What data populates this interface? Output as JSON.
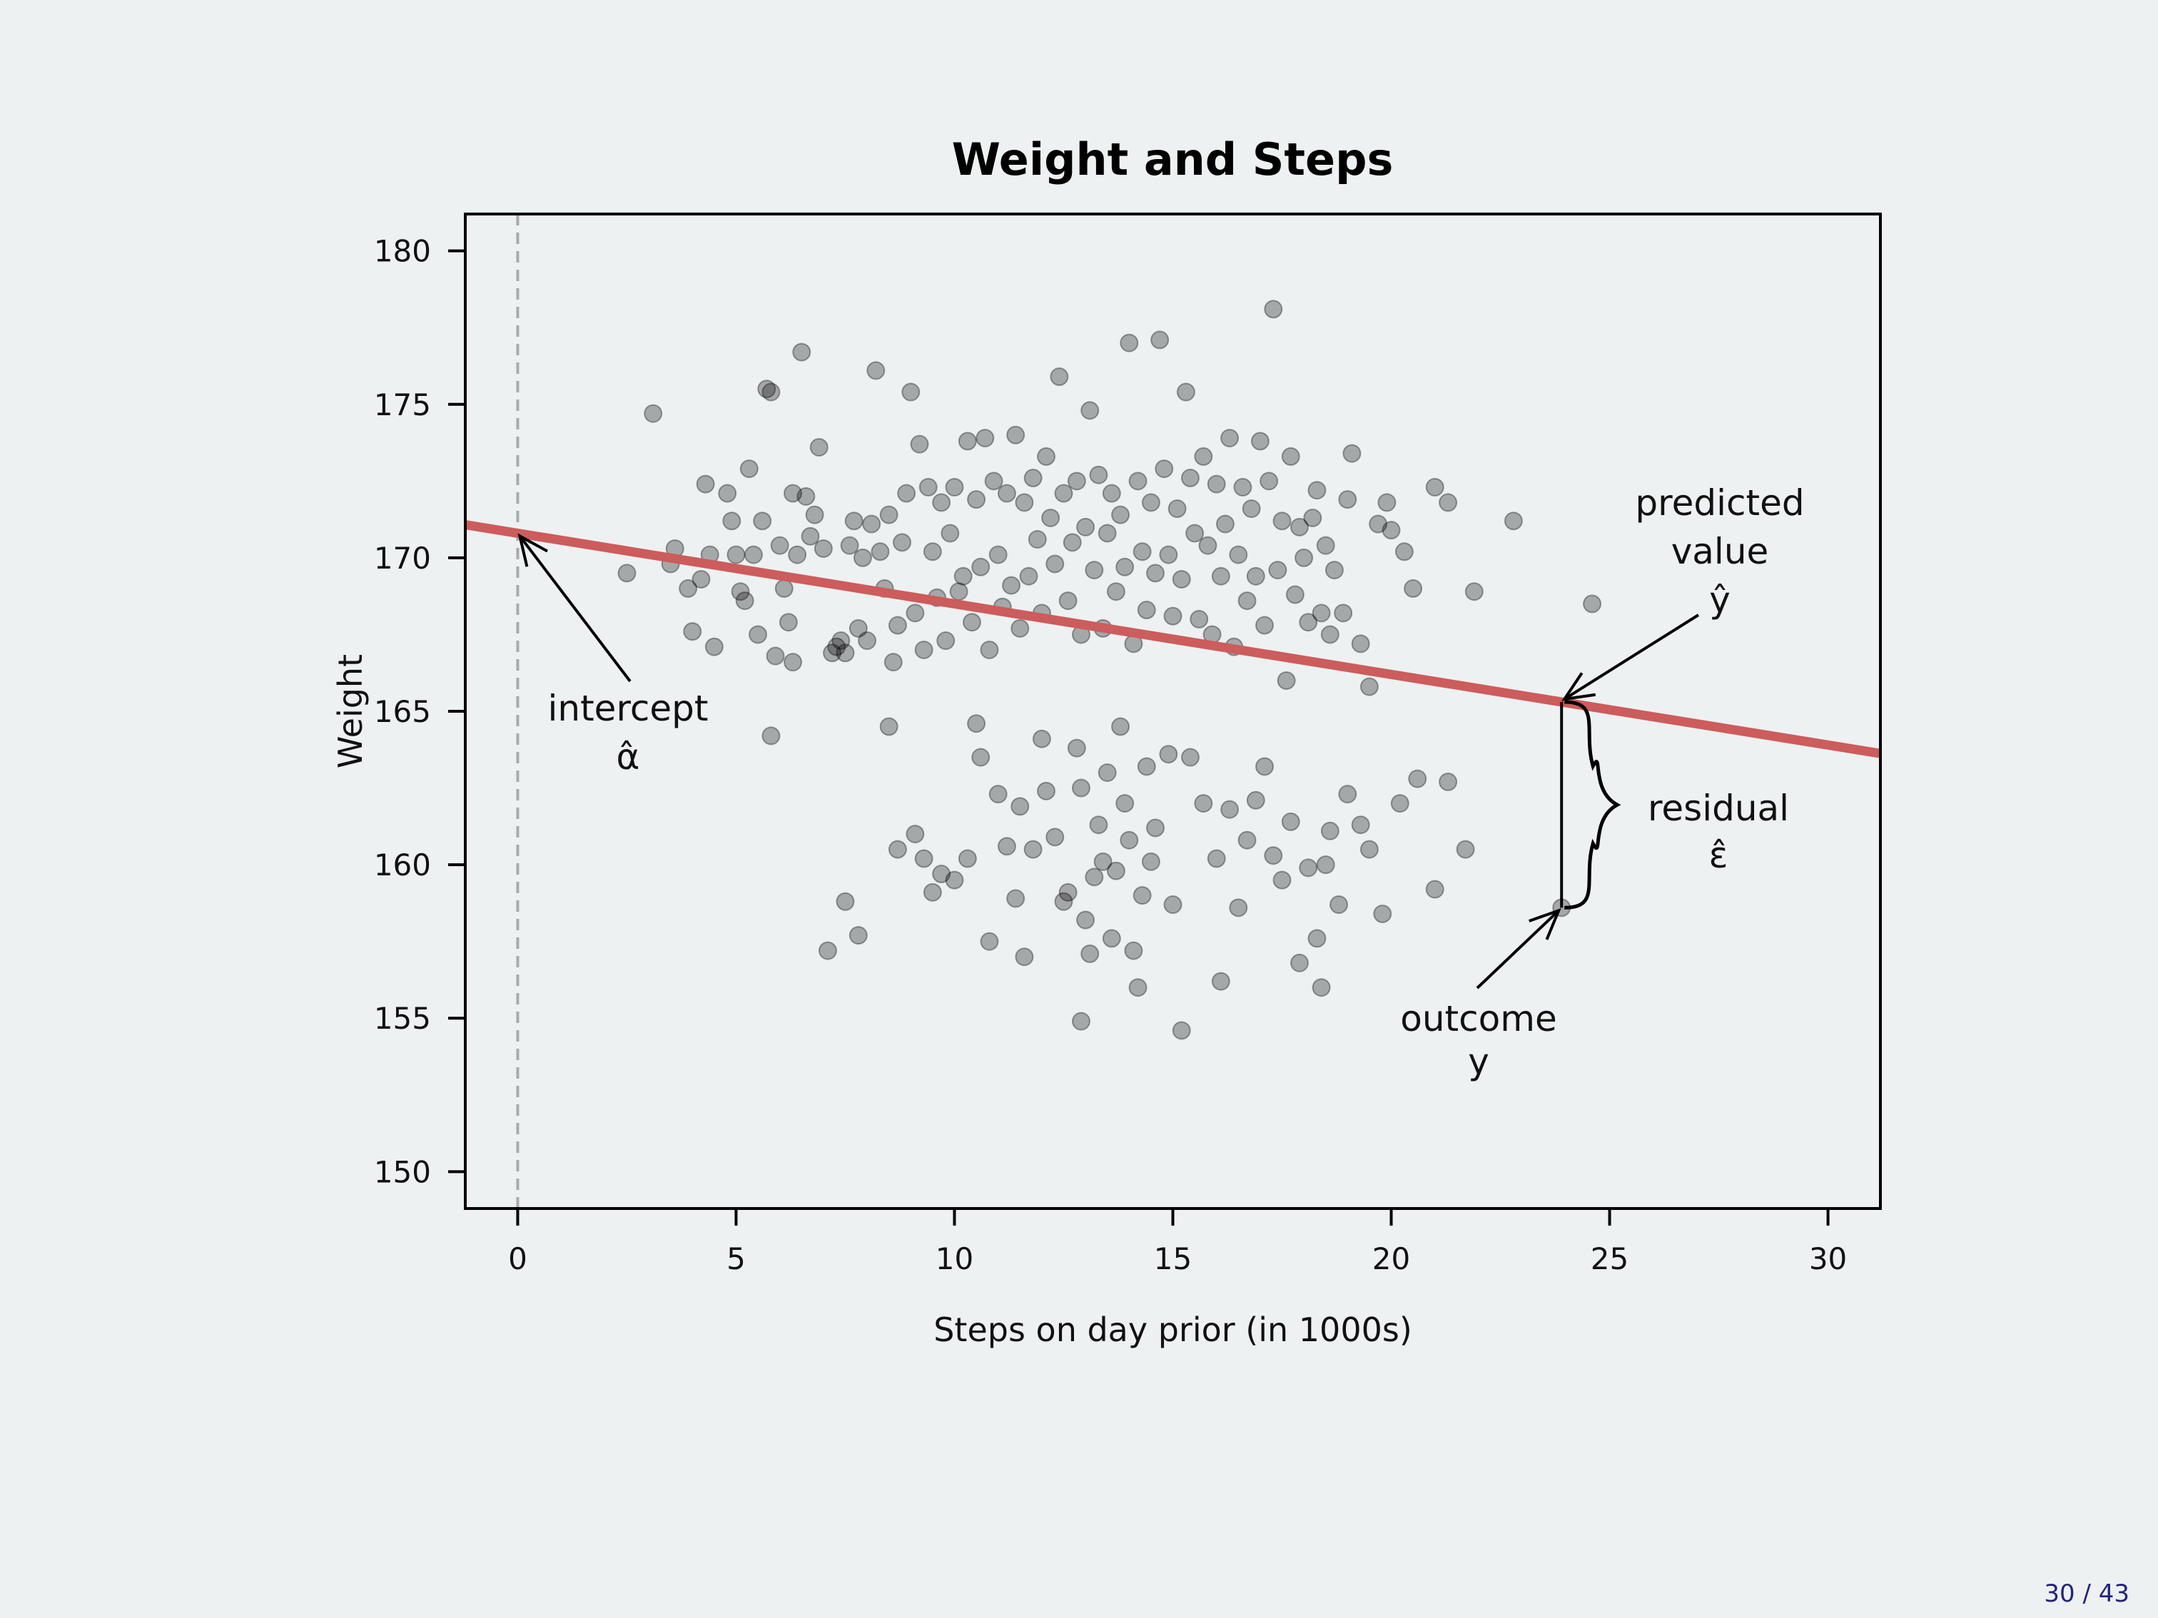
{
  "page": {
    "counter": "30 / 43"
  },
  "chart_data": {
    "type": "scatter",
    "title": "Weight and Steps",
    "xlabel": "Steps on day prior (in 1000s)",
    "ylabel": "Weight",
    "xlim": [
      -1.2,
      31.2
    ],
    "ylim": [
      148.8,
      181.2
    ],
    "xticks": [
      0,
      5,
      10,
      15,
      20,
      25,
      30
    ],
    "yticks": [
      150,
      155,
      160,
      165,
      170,
      175,
      180
    ],
    "grid": false,
    "point_color": "#000000",
    "point_opacity": 0.3,
    "regression_line": {
      "intercept": 170.8,
      "slope": -0.23,
      "color": "#cd5c5c"
    },
    "highlighted_point": {
      "x": 23.9,
      "y": 158.6
    },
    "annotations": {
      "intercept": [
        "intercept",
        "α̂"
      ],
      "predicted": [
        "predicted",
        "value",
        "ŷ"
      ],
      "residual": [
        "residual",
        "ε̂"
      ],
      "outcome": [
        "outcome",
        "y"
      ]
    },
    "points": [
      [
        2.5,
        169.5
      ],
      [
        3.1,
        174.7
      ],
      [
        3.5,
        169.8
      ],
      [
        3.6,
        170.3
      ],
      [
        3.9,
        169.0
      ],
      [
        4.0,
        167.6
      ],
      [
        4.2,
        169.3
      ],
      [
        4.3,
        172.4
      ],
      [
        4.4,
        170.1
      ],
      [
        4.5,
        167.1
      ],
      [
        4.8,
        172.1
      ],
      [
        4.9,
        171.2
      ],
      [
        5.0,
        170.1
      ],
      [
        5.1,
        168.9
      ],
      [
        5.2,
        168.6
      ],
      [
        5.3,
        172.9
      ],
      [
        5.4,
        170.1
      ],
      [
        5.5,
        167.5
      ],
      [
        5.6,
        171.2
      ],
      [
        5.7,
        175.5
      ],
      [
        5.8,
        175.4
      ],
      [
        5.9,
        166.8
      ],
      [
        6.0,
        170.4
      ],
      [
        6.1,
        169.0
      ],
      [
        6.2,
        167.9
      ],
      [
        6.3,
        172.1
      ],
      [
        6.3,
        166.6
      ],
      [
        6.4,
        170.1
      ],
      [
        6.5,
        176.7
      ],
      [
        6.6,
        172.0
      ],
      [
        6.7,
        170.7
      ],
      [
        6.8,
        171.4
      ],
      [
        6.9,
        173.6
      ],
      [
        7.0,
        170.3
      ],
      [
        7.2,
        166.9
      ],
      [
        7.3,
        167.1
      ],
      [
        7.4,
        167.3
      ],
      [
        7.5,
        166.9
      ],
      [
        7.6,
        170.4
      ],
      [
        7.7,
        171.2
      ],
      [
        7.8,
        167.7
      ],
      [
        7.9,
        170.0
      ],
      [
        8.0,
        167.3
      ],
      [
        8.1,
        171.1
      ],
      [
        8.2,
        176.1
      ],
      [
        8.3,
        170.2
      ],
      [
        8.4,
        169.0
      ],
      [
        8.5,
        171.4
      ],
      [
        8.6,
        166.6
      ],
      [
        8.7,
        167.8
      ],
      [
        8.8,
        170.5
      ],
      [
        8.9,
        172.1
      ],
      [
        9.0,
        175.4
      ],
      [
        9.1,
        168.2
      ],
      [
        9.2,
        173.7
      ],
      [
        9.3,
        167.0
      ],
      [
        9.4,
        172.3
      ],
      [
        9.5,
        170.2
      ],
      [
        9.6,
        168.7
      ],
      [
        9.7,
        171.8
      ],
      [
        9.8,
        167.3
      ],
      [
        9.9,
        170.8
      ],
      [
        10.0,
        172.3
      ],
      [
        10.1,
        168.9
      ],
      [
        10.2,
        169.4
      ],
      [
        10.3,
        173.8
      ],
      [
        10.4,
        167.9
      ],
      [
        10.5,
        171.9
      ],
      [
        10.6,
        169.7
      ],
      [
        10.7,
        173.9
      ],
      [
        10.8,
        167.0
      ],
      [
        10.9,
        172.5
      ],
      [
        11.0,
        170.1
      ],
      [
        11.1,
        168.4
      ],
      [
        11.2,
        172.1
      ],
      [
        11.3,
        169.1
      ],
      [
        11.4,
        174.0
      ],
      [
        11.5,
        167.7
      ],
      [
        11.6,
        171.8
      ],
      [
        11.7,
        169.4
      ],
      [
        11.8,
        172.6
      ],
      [
        11.9,
        170.6
      ],
      [
        12.0,
        168.2
      ],
      [
        12.1,
        173.3
      ],
      [
        12.2,
        171.3
      ],
      [
        12.3,
        169.8
      ],
      [
        12.4,
        175.9
      ],
      [
        12.5,
        172.1
      ],
      [
        12.6,
        168.6
      ],
      [
        12.7,
        170.5
      ],
      [
        12.8,
        172.5
      ],
      [
        12.9,
        167.5
      ],
      [
        13.0,
        171.0
      ],
      [
        13.1,
        174.8
      ],
      [
        13.2,
        169.6
      ],
      [
        13.3,
        172.7
      ],
      [
        13.4,
        167.7
      ],
      [
        13.5,
        170.8
      ],
      [
        13.6,
        172.1
      ],
      [
        13.7,
        168.9
      ],
      [
        13.8,
        171.4
      ],
      [
        13.9,
        169.7
      ],
      [
        14.0,
        177.0
      ],
      [
        14.1,
        167.2
      ],
      [
        14.2,
        172.5
      ],
      [
        14.3,
        170.2
      ],
      [
        14.4,
        168.3
      ],
      [
        14.5,
        171.8
      ],
      [
        14.6,
        169.5
      ],
      [
        14.7,
        177.1
      ],
      [
        14.8,
        172.9
      ],
      [
        14.9,
        170.1
      ],
      [
        15.0,
        168.1
      ],
      [
        15.1,
        171.6
      ],
      [
        15.2,
        169.3
      ],
      [
        15.3,
        175.4
      ],
      [
        15.4,
        172.6
      ],
      [
        15.5,
        170.8
      ],
      [
        15.6,
        168.0
      ],
      [
        15.7,
        173.3
      ],
      [
        15.8,
        170.4
      ],
      [
        15.9,
        167.5
      ],
      [
        16.0,
        172.4
      ],
      [
        16.1,
        169.4
      ],
      [
        16.2,
        171.1
      ],
      [
        16.3,
        173.9
      ],
      [
        16.4,
        167.1
      ],
      [
        16.5,
        170.1
      ],
      [
        16.6,
        172.3
      ],
      [
        16.7,
        168.6
      ],
      [
        16.8,
        171.6
      ],
      [
        16.9,
        169.4
      ],
      [
        17.0,
        173.8
      ],
      [
        17.1,
        167.8
      ],
      [
        17.2,
        172.5
      ],
      [
        17.3,
        178.1
      ],
      [
        17.4,
        169.6
      ],
      [
        17.5,
        171.2
      ],
      [
        17.6,
        166.0
      ],
      [
        17.7,
        173.3
      ],
      [
        17.8,
        168.8
      ],
      [
        17.9,
        171.0
      ],
      [
        18.0,
        170.0
      ],
      [
        18.1,
        167.9
      ],
      [
        18.2,
        171.3
      ],
      [
        18.3,
        172.2
      ],
      [
        18.4,
        168.2
      ],
      [
        18.5,
        170.4
      ],
      [
        18.6,
        167.5
      ],
      [
        18.7,
        169.6
      ],
      [
        18.9,
        168.2
      ],
      [
        19.0,
        171.9
      ],
      [
        19.1,
        173.4
      ],
      [
        19.3,
        167.2
      ],
      [
        19.5,
        165.8
      ],
      [
        19.7,
        171.1
      ],
      [
        19.9,
        171.8
      ],
      [
        20.0,
        170.9
      ],
      [
        20.3,
        170.2
      ],
      [
        20.5,
        169.0
      ],
      [
        21.0,
        172.3
      ],
      [
        21.3,
        171.8
      ],
      [
        21.9,
        168.9
      ],
      [
        22.8,
        171.2
      ],
      [
        24.6,
        168.5
      ],
      [
        5.8,
        164.2
      ],
      [
        8.5,
        164.5
      ],
      [
        9.1,
        161.0
      ],
      [
        8.7,
        160.5
      ],
      [
        7.5,
        158.8
      ],
      [
        7.8,
        157.7
      ],
      [
        7.1,
        157.2
      ],
      [
        9.3,
        160.2
      ],
      [
        9.5,
        159.1
      ],
      [
        9.7,
        159.7
      ],
      [
        10.0,
        159.5
      ],
      [
        10.3,
        160.2
      ],
      [
        10.5,
        164.6
      ],
      [
        10.6,
        163.5
      ],
      [
        10.8,
        157.5
      ],
      [
        11.0,
        162.3
      ],
      [
        11.2,
        160.6
      ],
      [
        11.4,
        158.9
      ],
      [
        11.5,
        161.9
      ],
      [
        11.6,
        157.0
      ],
      [
        11.8,
        160.5
      ],
      [
        12.0,
        164.1
      ],
      [
        12.1,
        162.4
      ],
      [
        12.3,
        160.9
      ],
      [
        12.5,
        158.8
      ],
      [
        12.6,
        159.1
      ],
      [
        12.8,
        163.8
      ],
      [
        12.9,
        162.5
      ],
      [
        13.0,
        158.2
      ],
      [
        13.1,
        157.1
      ],
      [
        13.2,
        159.6
      ],
      [
        13.3,
        161.3
      ],
      [
        13.4,
        160.1
      ],
      [
        13.5,
        163.0
      ],
      [
        13.6,
        157.6
      ],
      [
        13.7,
        159.8
      ],
      [
        13.8,
        164.5
      ],
      [
        13.9,
        162.0
      ],
      [
        14.0,
        160.8
      ],
      [
        14.1,
        157.2
      ],
      [
        14.2,
        156.0
      ],
      [
        14.3,
        159.0
      ],
      [
        14.4,
        163.2
      ],
      [
        14.5,
        160.1
      ],
      [
        14.6,
        161.2
      ],
      [
        14.9,
        163.6
      ],
      [
        15.0,
        158.7
      ],
      [
        15.2,
        154.6
      ],
      [
        15.4,
        163.5
      ],
      [
        15.7,
        162.0
      ],
      [
        16.0,
        160.2
      ],
      [
        16.1,
        156.2
      ],
      [
        16.3,
        161.8
      ],
      [
        16.5,
        158.6
      ],
      [
        16.7,
        160.8
      ],
      [
        16.9,
        162.1
      ],
      [
        17.1,
        163.2
      ],
      [
        17.3,
        160.3
      ],
      [
        17.5,
        159.5
      ],
      [
        17.7,
        161.4
      ],
      [
        17.9,
        156.8
      ],
      [
        18.1,
        159.9
      ],
      [
        18.3,
        157.6
      ],
      [
        18.4,
        156.0
      ],
      [
        18.5,
        160.0
      ],
      [
        18.6,
        161.1
      ],
      [
        18.8,
        158.7
      ],
      [
        19.0,
        162.3
      ],
      [
        19.3,
        161.3
      ],
      [
        19.5,
        160.5
      ],
      [
        19.8,
        158.4
      ],
      [
        20.2,
        162.0
      ],
      [
        20.6,
        162.8
      ],
      [
        21.0,
        159.2
      ],
      [
        21.3,
        162.7
      ],
      [
        21.7,
        160.5
      ],
      [
        12.9,
        154.9
      ],
      [
        23.9,
        158.6
      ]
    ]
  }
}
